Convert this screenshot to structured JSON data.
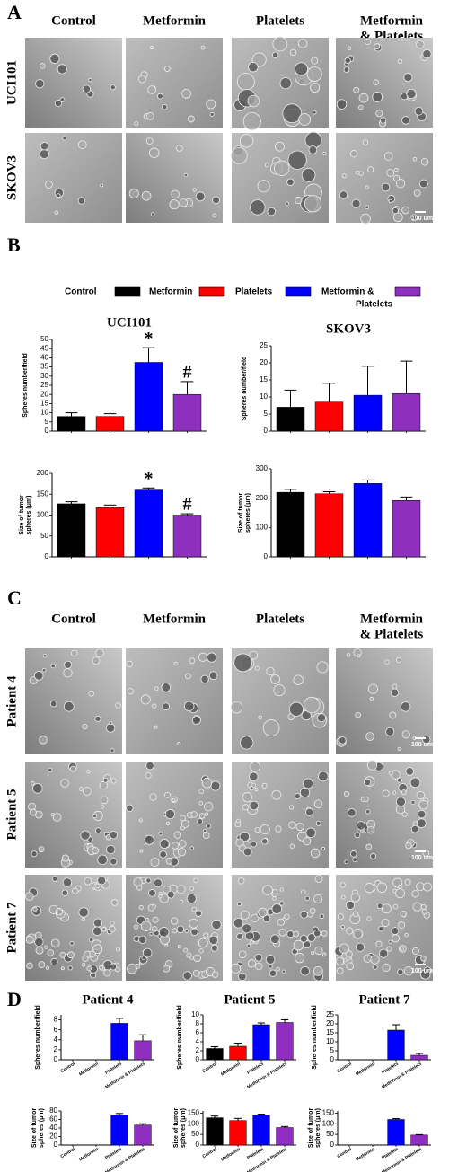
{
  "panel_labels": [
    "A",
    "B",
    "C",
    "D"
  ],
  "headers_a": [
    [
      "Control"
    ],
    [
      "Metformin"
    ],
    [
      "Platelets"
    ],
    [
      "Metformin",
      "& Platelets"
    ]
  ],
  "rows_a": [
    "UCI101",
    "SKOV3"
  ],
  "headers_c": [
    [
      "Control"
    ],
    [
      "Metformin"
    ],
    [
      "Platelets"
    ],
    [
      "Metformin",
      "& Platelets"
    ]
  ],
  "rows_c": [
    "Patient 4",
    "Patient 5",
    "Patient 7"
  ],
  "scale_bar": "100 um",
  "legend": {
    "labels": [
      [
        "Control"
      ],
      [
        "Metformin"
      ],
      [
        "Platelets"
      ],
      [
        "Metformin &",
        "Platelets"
      ]
    ],
    "colors": [
      "#000000",
      "#ff0000",
      "#0000ff",
      "#8e2fc0"
    ]
  },
  "chart_data": [
    {
      "type": "bar",
      "title": "UCI101",
      "ylabel": [
        "Spheres number/field"
      ],
      "categories": [
        null,
        null,
        null,
        null
      ],
      "values": [
        8,
        8,
        37.5,
        20
      ],
      "errors": [
        2,
        1.5,
        8,
        7
      ],
      "annotations": [
        null,
        null,
        "*",
        "#"
      ],
      "colors": [
        "#000000",
        "#ff0000",
        "#0000ff",
        "#8e2fc0"
      ],
      "ylim": [
        0,
        50
      ],
      "yticks": [
        0,
        5,
        10,
        15,
        20,
        25,
        30,
        35,
        40,
        45,
        50
      ]
    },
    {
      "type": "bar",
      "title": "SKOV3",
      "ylabel": [
        "Spheres number/field"
      ],
      "categories": [
        null,
        null,
        null,
        null
      ],
      "values": [
        7,
        8.5,
        10.5,
        11
      ],
      "errors": [
        5,
        5.5,
        8.5,
        9.5
      ],
      "colors": [
        "#000000",
        "#ff0000",
        "#0000ff",
        "#8e2fc0"
      ],
      "ylim": [
        0,
        25
      ],
      "yticks": [
        0,
        5,
        10,
        15,
        20,
        25
      ]
    },
    {
      "type": "bar",
      "ylabel": [
        "Size of tumor",
        "spheres (μm)"
      ],
      "categories": [
        null,
        null,
        null,
        null
      ],
      "values": [
        127,
        118,
        160,
        100
      ],
      "errors": [
        5,
        6,
        5,
        3
      ],
      "annotations": [
        null,
        null,
        "*",
        "#"
      ],
      "colors": [
        "#000000",
        "#ff0000",
        "#0000ff",
        "#8e2fc0"
      ],
      "ylim": [
        0,
        200
      ],
      "yticks": [
        0,
        50,
        100,
        150,
        200
      ]
    },
    {
      "type": "bar",
      "ylabel": [
        "Size of tumor",
        "spheres (μm)"
      ],
      "categories": [
        null,
        null,
        null,
        null
      ],
      "values": [
        220,
        215,
        250,
        192
      ],
      "errors": [
        10,
        7,
        12,
        12
      ],
      "colors": [
        "#000000",
        "#ff0000",
        "#0000ff",
        "#8e2fc0"
      ],
      "ylim": [
        0,
        300
      ],
      "yticks": [
        0,
        100,
        200,
        300
      ]
    },
    {
      "type": "bar",
      "title": "Patient 4",
      "ylabel": [
        "Spheres number/field"
      ],
      "categories": [
        "Control",
        "Metformin",
        "Platelets",
        "Metformin & Platelets"
      ],
      "values": [
        0,
        0,
        7.3,
        3.8
      ],
      "errors": [
        null,
        null,
        1,
        1.2
      ],
      "colors": [
        "#000000",
        "#ff0000",
        "#0000ff",
        "#8e2fc0"
      ],
      "ylim": [
        0,
        9
      ],
      "yticks": [
        0,
        2,
        4,
        6,
        8
      ]
    },
    {
      "type": "bar",
      "title": "Patient 5",
      "ylabel": [
        "Spheres number/field"
      ],
      "categories": [
        "Control",
        "Metformin",
        "Platelets",
        "Metformin & Platelets"
      ],
      "values": [
        2.5,
        3,
        7.8,
        8.3
      ],
      "errors": [
        0.4,
        0.7,
        0.4,
        0.6
      ],
      "colors": [
        "#000000",
        "#ff0000",
        "#0000ff",
        "#8e2fc0"
      ],
      "ylim": [
        0,
        10
      ],
      "yticks": [
        0,
        2,
        4,
        6,
        8,
        10
      ]
    },
    {
      "type": "bar",
      "title": "Patient 7",
      "ylabel": [
        "Spheres number/field"
      ],
      "categories": [
        "Control",
        "Metformin",
        "Platelets",
        "Metformin & Platelets"
      ],
      "values": [
        0,
        0,
        16.5,
        2.5
      ],
      "errors": [
        null,
        null,
        3,
        1
      ],
      "colors": [
        "#000000",
        "#ff0000",
        "#0000ff",
        "#8e2fc0"
      ],
      "ylim": [
        0,
        25
      ],
      "yticks": [
        0,
        5,
        10,
        15,
        20,
        25
      ]
    },
    {
      "type": "bar",
      "ylabel": [
        "Size of tumor",
        "spheres (μm)"
      ],
      "categories": [
        "Control",
        "Metformin",
        "Platelets",
        "Metformin & Platelets"
      ],
      "values": [
        0,
        0,
        70,
        47
      ],
      "errors": [
        null,
        null,
        4,
        3
      ],
      "colors": [
        "#000000",
        "#ff0000",
        "#0000ff",
        "#8e2fc0"
      ],
      "ylim": [
        0,
        80
      ],
      "yticks": [
        0,
        20,
        40,
        60,
        80
      ]
    },
    {
      "type": "bar",
      "ylabel": [
        "Size of tumor",
        "spheres (μm)"
      ],
      "categories": [
        "Control",
        "Metformin",
        "Platelets",
        "Metformin & Platelets"
      ],
      "values": [
        128,
        115,
        140,
        82
      ],
      "errors": [
        8,
        10,
        5,
        5
      ],
      "colors": [
        "#000000",
        "#ff0000",
        "#0000ff",
        "#8e2fc0"
      ],
      "ylim": [
        0,
        160
      ],
      "yticks": [
        0,
        50,
        100,
        150
      ]
    },
    {
      "type": "bar",
      "ylabel": [
        "Size of tumor",
        "spheres (μm)"
      ],
      "categories": [
        "Control",
        "Metformin",
        "Platelets",
        "Metformin & Platelets"
      ],
      "values": [
        0,
        0,
        120,
        47
      ],
      "errors": [
        null,
        null,
        4,
        2
      ],
      "colors": [
        "#000000",
        "#ff0000",
        "#0000ff",
        "#8e2fc0"
      ],
      "ylim": [
        0,
        160
      ],
      "yticks": [
        0,
        50,
        100,
        150
      ]
    }
  ]
}
